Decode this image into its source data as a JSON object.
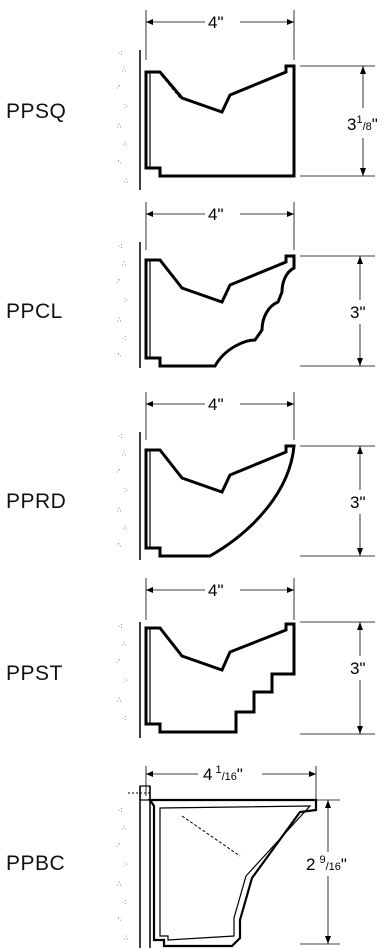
{
  "profiles": [
    {
      "code": "PPSQ",
      "width": "4\"",
      "height_whole": "3",
      "height_num": "1",
      "height_den": "8",
      "height_unit": "\""
    },
    {
      "code": "PPCL",
      "width": "4\"",
      "height": "3\""
    },
    {
      "code": "PPRD",
      "width": "4\"",
      "height": "3\""
    },
    {
      "code": "PPST",
      "width": "4\"",
      "height": "3\""
    },
    {
      "code": "PPBC",
      "width_whole": "4",
      "width_num": "1",
      "width_den": "16",
      "width_unit": "\"",
      "height_whole": "2",
      "height_num": "9",
      "height_den": "16",
      "height_unit": "\""
    }
  ]
}
